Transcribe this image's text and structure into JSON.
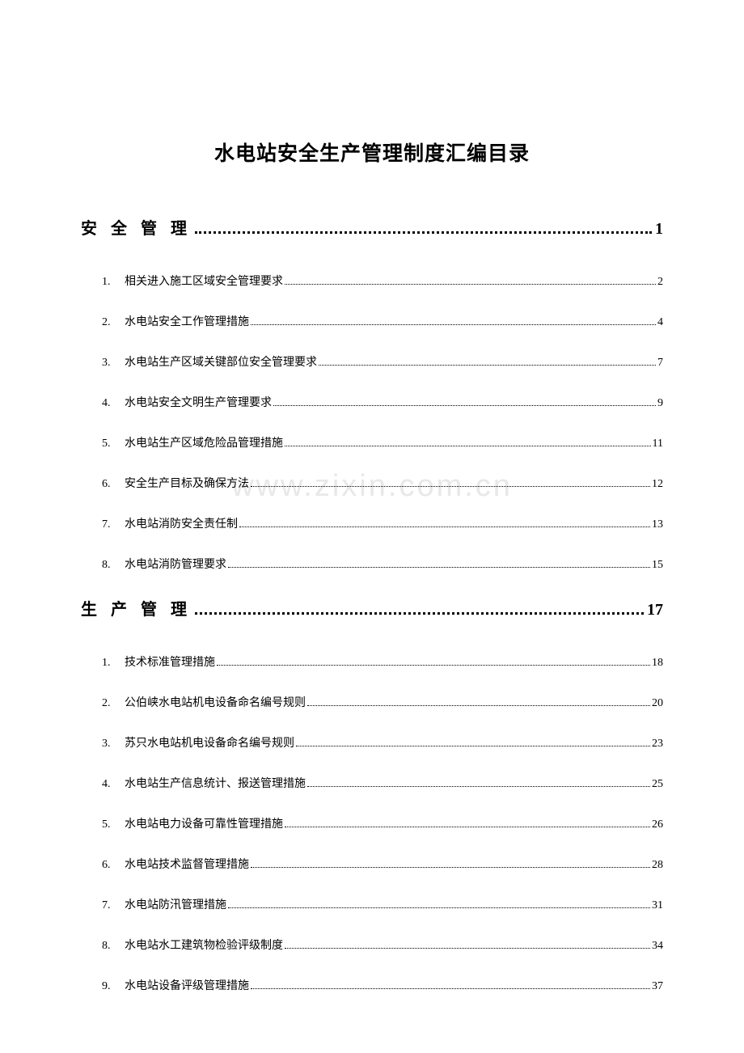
{
  "title": "水电站安全生产管理制度汇编目录",
  "watermark": "www.zixin.com.cn",
  "sections": [
    {
      "title": "安 全 管 理",
      "page": "1",
      "entries": [
        {
          "num": "1.",
          "title": "相关进入施工区域安全管理要求",
          "page": "2"
        },
        {
          "num": "2.",
          "title": "水电站安全工作管理措施",
          "page": "4"
        },
        {
          "num": "3.",
          "title": "水电站生产区域关键部位安全管理要求",
          "page": "7"
        },
        {
          "num": "4.",
          "title": "水电站安全文明生产管理要求",
          "page": "9"
        },
        {
          "num": "5.",
          "title": "水电站生产区域危险品管理措施",
          "page": "11"
        },
        {
          "num": "6.",
          "title": "安全生产目标及确保方法",
          "page": "12"
        },
        {
          "num": "7.",
          "title": "水电站消防安全责任制",
          "page": "13"
        },
        {
          "num": "8.",
          "title": "水电站消防管理要求",
          "page": "15"
        }
      ]
    },
    {
      "title": "生 产 管 理",
      "page": "17",
      "entries": [
        {
          "num": "1.",
          "title": "技术标准管理措施",
          "page": "18"
        },
        {
          "num": "2.",
          "title": "公伯峡水电站机电设备命名编号规则",
          "page": "20"
        },
        {
          "num": "3.",
          "title": "苏只水电站机电设备命名编号规则",
          "page": "23"
        },
        {
          "num": "4.",
          "title": "水电站生产信息统计、报送管理措施",
          "page": "25"
        },
        {
          "num": "5.",
          "title": "水电站电力设备可靠性管理措施",
          "page": "26"
        },
        {
          "num": "6.",
          "title": "水电站技术监督管理措施",
          "page": "28"
        },
        {
          "num": "7.",
          "title": "水电站防汛管理措施",
          "page": "31"
        },
        {
          "num": "8.",
          "title": "水电站水工建筑物检验评级制度",
          "page": "34"
        },
        {
          "num": "9.",
          "title": "水电站设备评级管理措施",
          "page": "37"
        }
      ]
    }
  ],
  "colors": {
    "background": "#ffffff",
    "text": "#000000",
    "watermark": "#e8e8e8"
  },
  "typography": {
    "title_fontsize": 25,
    "section_fontsize": 20,
    "entry_fontsize": 14,
    "font_family": "SimSun"
  }
}
